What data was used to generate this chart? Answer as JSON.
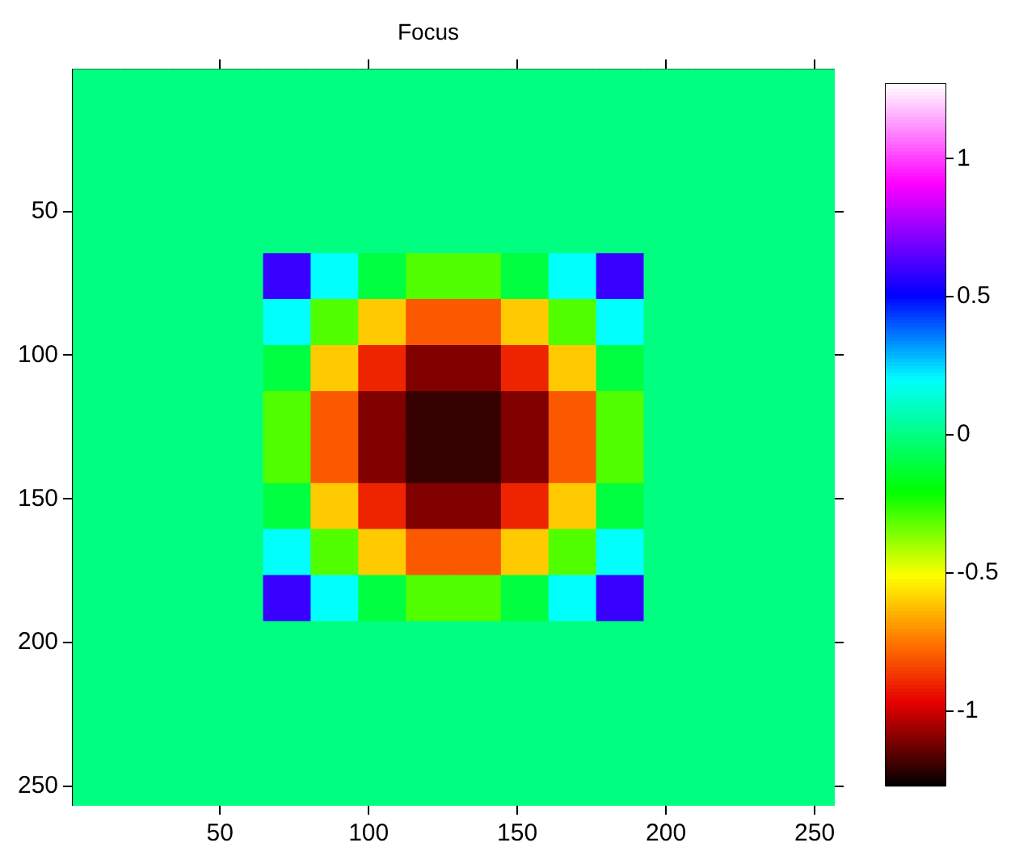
{
  "chart_data": {
    "type": "heatmap",
    "title": "Focus",
    "xlim": [
      0.5,
      256.5
    ],
    "xticks": [
      50,
      100,
      150,
      200,
      250
    ],
    "ylim": [
      256.5,
      0.5
    ],
    "yticks": [
      50,
      100,
      150,
      200,
      250
    ],
    "clim": [
      -1.27,
      1.27
    ],
    "cticks": [
      -1,
      -0.5,
      0,
      0.5,
      1
    ],
    "cells": [
      [
        0,
        0,
        0,
        0,
        0,
        0,
        0,
        0,
        0,
        0,
        0,
        0,
        0,
        0,
        0,
        0
      ],
      [
        0,
        0,
        0,
        0,
        0,
        0,
        0,
        0,
        0,
        0,
        0,
        0,
        0,
        0,
        0,
        0
      ],
      [
        0,
        0,
        0,
        0,
        0,
        0,
        0,
        0,
        0,
        0,
        0,
        0,
        0,
        0,
        0,
        0
      ],
      [
        0,
        0,
        0,
        0,
        0,
        0,
        0,
        0,
        0,
        0,
        0,
        0,
        0,
        0,
        0,
        0
      ],
      [
        0,
        0,
        0,
        0,
        0.6,
        0.2,
        -0.1,
        -0.3,
        -0.3,
        -0.1,
        0.2,
        0.6,
        0,
        0,
        0,
        0
      ],
      [
        0,
        0,
        0,
        0,
        0.2,
        -0.3,
        -0.6,
        -0.8,
        -0.8,
        -0.6,
        -0.3,
        0.2,
        0,
        0,
        0,
        0
      ],
      [
        0,
        0,
        0,
        0,
        -0.1,
        -0.6,
        -0.9,
        -1.1,
        -1.1,
        -0.9,
        -0.6,
        -0.1,
        0,
        0,
        0,
        0
      ],
      [
        0,
        0,
        0,
        0,
        -0.3,
        -0.8,
        -1.1,
        -1.2,
        -1.2,
        -1.1,
        -0.8,
        -0.3,
        0,
        0,
        0,
        0
      ],
      [
        0,
        0,
        0,
        0,
        -0.3,
        -0.8,
        -1.1,
        -1.2,
        -1.2,
        -1.1,
        -0.8,
        -0.3,
        0,
        0,
        0,
        0
      ],
      [
        0,
        0,
        0,
        0,
        -0.1,
        -0.6,
        -0.9,
        -1.1,
        -1.1,
        -0.9,
        -0.6,
        -0.1,
        0,
        0,
        0,
        0
      ],
      [
        0,
        0,
        0,
        0,
        0.2,
        -0.3,
        -0.6,
        -0.8,
        -0.8,
        -0.6,
        -0.3,
        0.2,
        0,
        0,
        0,
        0
      ],
      [
        0,
        0,
        0,
        0,
        0.6,
        0.2,
        -0.1,
        -0.3,
        -0.3,
        -0.1,
        0.2,
        0.6,
        0,
        0,
        0,
        0
      ],
      [
        0,
        0,
        0,
        0,
        0,
        0,
        0,
        0,
        0,
        0,
        0,
        0,
        0,
        0,
        0,
        0
      ],
      [
        0,
        0,
        0,
        0,
        0,
        0,
        0,
        0,
        0,
        0,
        0,
        0,
        0,
        0,
        0,
        0
      ],
      [
        0,
        0,
        0,
        0,
        0,
        0,
        0,
        0,
        0,
        0,
        0,
        0,
        0,
        0,
        0,
        0
      ],
      [
        0,
        0,
        0,
        0,
        0,
        0,
        0,
        0,
        0,
        0,
        0,
        0,
        0,
        0,
        0,
        0
      ]
    ]
  }
}
